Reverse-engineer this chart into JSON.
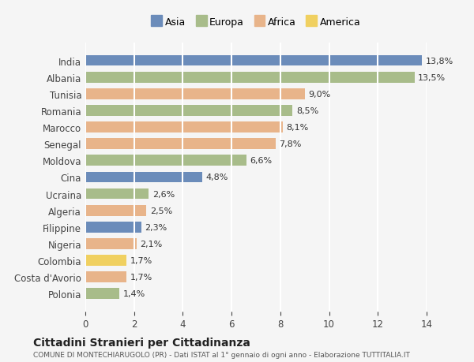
{
  "countries": [
    "India",
    "Albania",
    "Tunisia",
    "Romania",
    "Marocco",
    "Senegal",
    "Moldova",
    "Cina",
    "Ucraina",
    "Algeria",
    "Filippine",
    "Nigeria",
    "Colombia",
    "Costa d'Avorio",
    "Polonia"
  ],
  "values": [
    13.8,
    13.5,
    9.0,
    8.5,
    8.1,
    7.8,
    6.6,
    4.8,
    2.6,
    2.5,
    2.3,
    2.1,
    1.7,
    1.7,
    1.4
  ],
  "labels": [
    "13,8%",
    "13,5%",
    "9,0%",
    "8,5%",
    "8,1%",
    "7,8%",
    "6,6%",
    "4,8%",
    "2,6%",
    "2,5%",
    "2,3%",
    "2,1%",
    "1,7%",
    "1,7%",
    "1,4%"
  ],
  "continents": [
    "Asia",
    "Europa",
    "Africa",
    "Europa",
    "Africa",
    "Africa",
    "Europa",
    "Asia",
    "Europa",
    "Africa",
    "Asia",
    "Africa",
    "America",
    "Africa",
    "Europa"
  ],
  "colors": {
    "Asia": "#6b8cba",
    "Europa": "#a8bc8a",
    "Africa": "#e8b48a",
    "America": "#f0d060"
  },
  "legend_order": [
    "Asia",
    "Europa",
    "Africa",
    "America"
  ],
  "title": "Cittadini Stranieri per Cittadinanza",
  "subtitle": "COMUNE DI MONTECHIARUGOLO (PR) - Dati ISTAT al 1° gennaio di ogni anno - Elaborazione TUTTITALIA.IT",
  "xlabel": "",
  "xlim": [
    0,
    14
  ],
  "xticks": [
    0,
    2,
    4,
    6,
    8,
    10,
    12,
    14
  ],
  "background_color": "#f5f5f5",
  "grid_color": "#ffffff",
  "bar_height": 0.65
}
